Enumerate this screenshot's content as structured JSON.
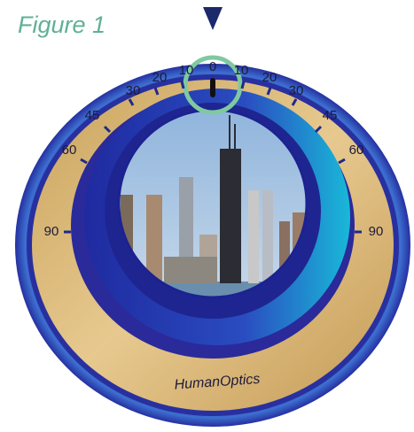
{
  "figure_label": "Figure 1",
  "scale": {
    "center": "0",
    "left": [
      "10",
      "20",
      "30",
      "45",
      "60",
      "90"
    ],
    "right": [
      "10",
      "20",
      "30",
      "45",
      "60",
      "90"
    ]
  },
  "brand": "HumanOptics"
}
